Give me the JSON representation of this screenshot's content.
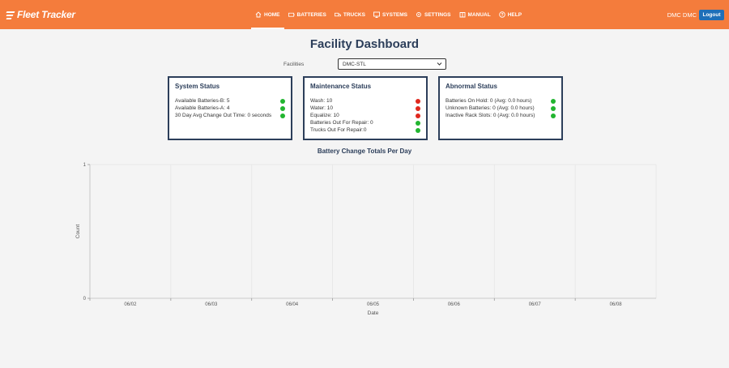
{
  "nav": {
    "logo": "Fleet Tracker",
    "items": [
      {
        "label": "HOME",
        "icon": "home-icon",
        "active": true
      },
      {
        "label": "BATTERIES",
        "icon": "battery-icon",
        "active": false
      },
      {
        "label": "TRUCKS",
        "icon": "truck-icon",
        "active": false
      },
      {
        "label": "SYSTEMS",
        "icon": "systems-icon",
        "active": false
      },
      {
        "label": "SETTINGS",
        "icon": "gear-icon",
        "active": false
      },
      {
        "label": "MANUAL",
        "icon": "manual-icon",
        "active": false
      },
      {
        "label": "HELP",
        "icon": "help-icon",
        "active": false
      }
    ],
    "user": "DMC DMC",
    "logout": "Logout"
  },
  "page": {
    "title": "Facility Dashboard",
    "facilities_label": "Facilities",
    "facility_selected": "DMC-STL"
  },
  "cards": [
    {
      "title": "System Status",
      "rows": [
        {
          "text": "Available Batteries-B: 5",
          "status": "green"
        },
        {
          "text": "Available Batteries-A: 4",
          "status": "green"
        },
        {
          "text": "30 Day Avg Change Out Time: 0 seconds",
          "status": "green"
        }
      ]
    },
    {
      "title": "Maintenance Status",
      "rows": [
        {
          "text": "Wash: 10",
          "status": "red"
        },
        {
          "text": "Water: 10",
          "status": "red"
        },
        {
          "text": "Equalize: 10",
          "status": "red"
        },
        {
          "text": "Batteries Out For Repair: 0",
          "status": "green"
        },
        {
          "text": "Trucks Out For Repair:0",
          "status": "green"
        }
      ]
    },
    {
      "title": "Abnormal Status",
      "rows": [
        {
          "text": "Batteries On Hold: 0 (Avg: 0.0 hours)",
          "status": "green"
        },
        {
          "text": "Unknown Batteries: 0 (Avg: 0.0 hours)",
          "status": "green"
        },
        {
          "text": "Inactive Rack Slots: 0 (Avg: 0.0 hours)",
          "status": "green"
        }
      ]
    }
  ],
  "colors": {
    "brand": "#f47c3c",
    "navy": "#2c3e5a",
    "green": "#22b530",
    "red": "#e0281e",
    "logout": "#1e6fb8"
  },
  "chart_data": {
    "type": "bar",
    "title": "Battery Change Totals Per Day",
    "xlabel": "Date",
    "ylabel": "Count",
    "categories": [
      "06/02",
      "06/03",
      "06/04",
      "06/05",
      "06/06",
      "06/07",
      "06/08"
    ],
    "values": [
      0,
      0,
      0,
      0,
      0,
      0,
      0
    ],
    "ylim": [
      0,
      1
    ],
    "yticks": [
      "0",
      "1"
    ],
    "grid": true
  }
}
